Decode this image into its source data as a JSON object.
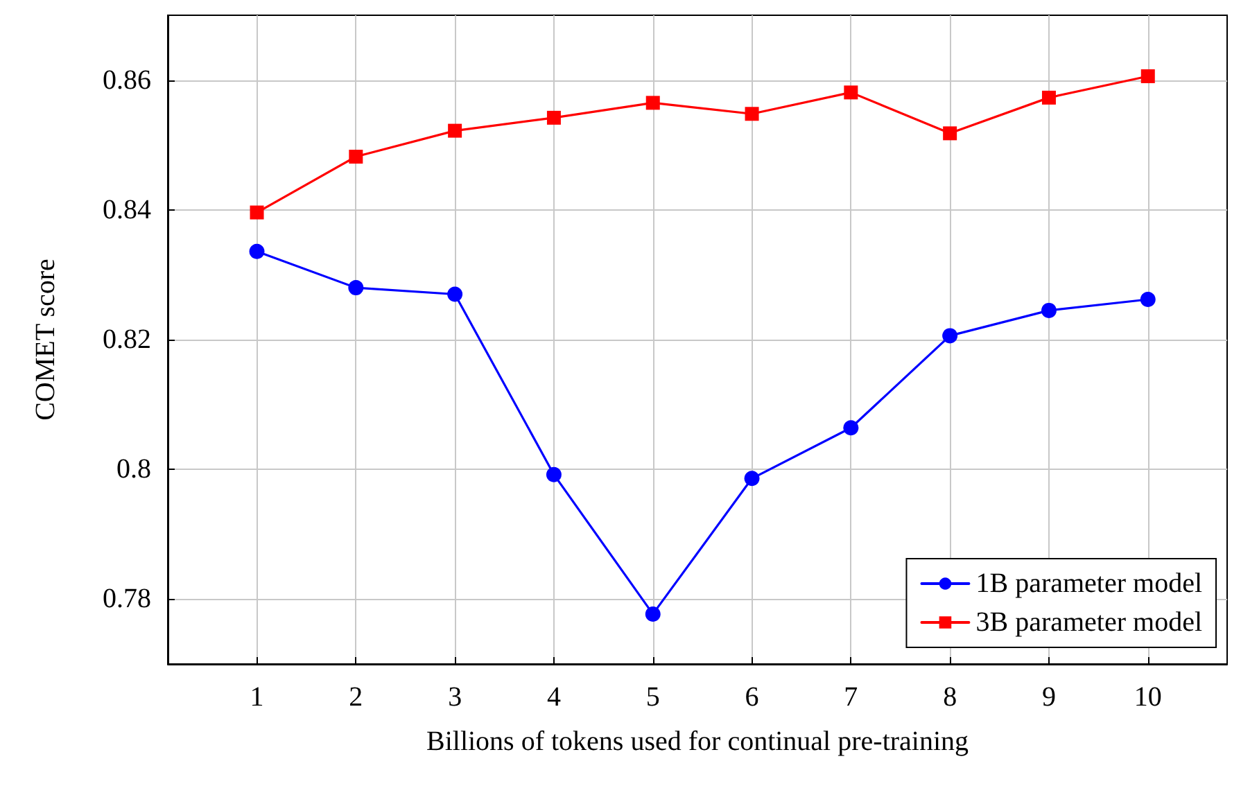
{
  "chart_data": {
    "type": "line",
    "xlabel": "Billions of tokens used for continual pre-training",
    "ylabel": "COMET score",
    "x": [
      1,
      2,
      3,
      4,
      5,
      6,
      7,
      8,
      9,
      10
    ],
    "series": [
      {
        "name": "1B parameter model",
        "color": "#0000ff",
        "marker": "circle",
        "values": [
          0.8336,
          0.828,
          0.827,
          0.7992,
          0.7777,
          0.7986,
          0.8064,
          0.8206,
          0.8245,
          0.8262
        ]
      },
      {
        "name": "3B parameter model",
        "color": "#ff0000",
        "marker": "square",
        "values": [
          0.8396,
          0.8482,
          0.8522,
          0.8542,
          0.8565,
          0.8548,
          0.8581,
          0.8518,
          0.8573,
          0.8606
        ]
      }
    ],
    "xlim": [
      0.1,
      10.8
    ],
    "xticks": [
      1,
      2,
      3,
      4,
      5,
      6,
      7,
      8,
      9,
      10
    ],
    "ylim": [
      0.77,
      0.87
    ],
    "yticks": [
      0.78,
      0.8,
      0.82,
      0.84,
      0.86
    ],
    "grid": true,
    "legend": "bottom right",
    "line_style": "solid"
  }
}
